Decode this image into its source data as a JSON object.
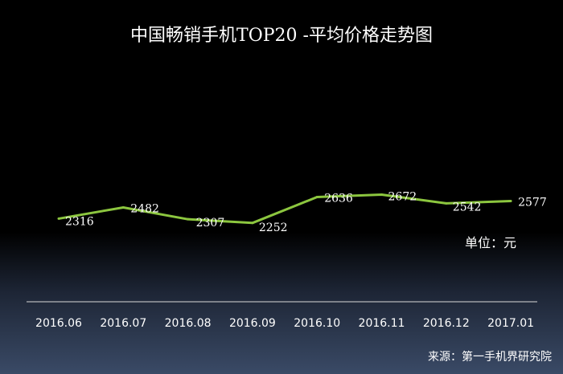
{
  "chart_data": {
    "type": "line",
    "title": "中国畅销手机TOP20 -平均价格走势图",
    "categories": [
      "2016.06",
      "2016.07",
      "2016.08",
      "2016.09",
      "2016.10",
      "2016.11",
      "2016.12",
      "2017.01"
    ],
    "values": [
      2316,
      2482,
      2307,
      2252,
      2636,
      2672,
      2542,
      2577
    ],
    "xlabel": "",
    "ylabel": "",
    "unit_label": "单位：元",
    "source": "来源：第一手机界研究院",
    "line_color": "#8cc63f",
    "background": "#000000",
    "grid": false,
    "legend": "none"
  }
}
